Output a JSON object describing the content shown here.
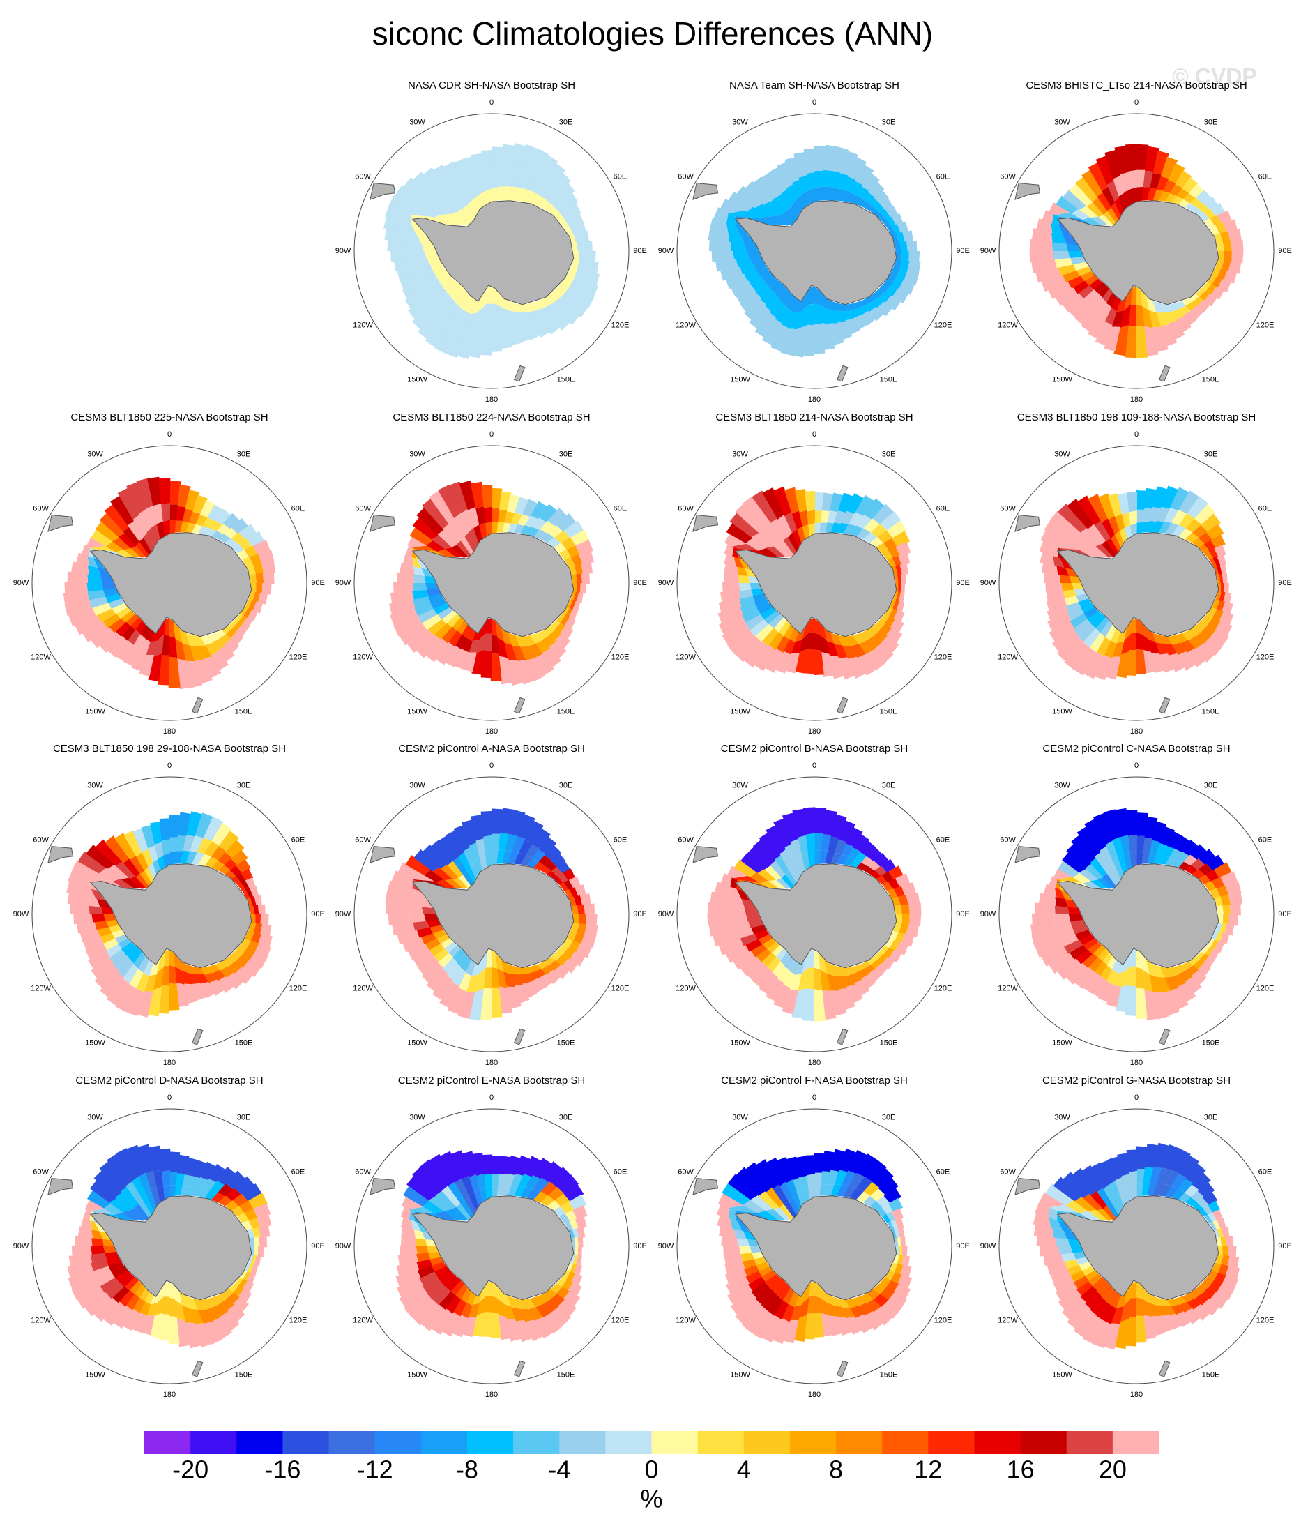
{
  "title": "siconc Climatologies Differences (ANN)",
  "watermark": "© CVDP",
  "panels": [
    {
      "title": "NASA CDR SH-NASA Bootstrap SH"
    },
    {
      "title": "NASA Team SH-NASA Bootstrap SH"
    },
    {
      "title": "CESM3 BHISTC_LTso 214-NASA Bootstrap SH"
    },
    {
      "title": "CESM3 BLT1850 225-NASA Bootstrap SH"
    },
    {
      "title": "CESM3 BLT1850 224-NASA Bootstrap SH"
    },
    {
      "title": "CESM3 BLT1850 214-NASA Bootstrap SH"
    },
    {
      "title": "CESM3 BLT1850 198 109-188-NASA Bootstrap SH"
    },
    {
      "title": "CESM3 BLT1850 198 29-108-NASA Bootstrap SH"
    },
    {
      "title": "CESM2 piControl A-NASA Bootstrap SH"
    },
    {
      "title": "CESM2 piControl B-NASA Bootstrap SH"
    },
    {
      "title": "CESM2 piControl C-NASA Bootstrap SH"
    },
    {
      "title": "CESM2 piControl D-NASA Bootstrap SH"
    },
    {
      "title": "CESM2 piControl E-NASA Bootstrap SH"
    },
    {
      "title": "CESM2 piControl F-NASA Bootstrap SH"
    },
    {
      "title": "CESM2 piControl G-NASA Bootstrap SH"
    }
  ],
  "longitude_labels": [
    "0",
    "30E",
    "60E",
    "90E",
    "120E",
    "150E",
    "180",
    "150W",
    "120W",
    "90W",
    "60W",
    "30W"
  ],
  "colorbar": {
    "levels": [
      -20,
      -18,
      -16,
      -14,
      -12,
      -10,
      -8,
      -6,
      -4,
      -2,
      0,
      2,
      4,
      6,
      8,
      10,
      12,
      14,
      16,
      18,
      20
    ],
    "colors": [
      "#8c28f0",
      "#4010f5",
      "#0000f0",
      "#2c50e0",
      "#3c70e0",
      "#2888f8",
      "#18a0f8",
      "#00c0ff",
      "#5ac8f2",
      "#98d0ee",
      "#bde3f5",
      "#fffaa0",
      "#ffe040",
      "#ffc820",
      "#ffa800",
      "#ff8a00",
      "#ff5a00",
      "#ff2800",
      "#e80000",
      "#c80000",
      "#dc4444",
      "#ffb0b0"
    ],
    "ticks": [
      -20,
      -16,
      -12,
      -8,
      -4,
      0,
      4,
      8,
      12,
      16,
      20
    ],
    "unit": "%"
  }
}
